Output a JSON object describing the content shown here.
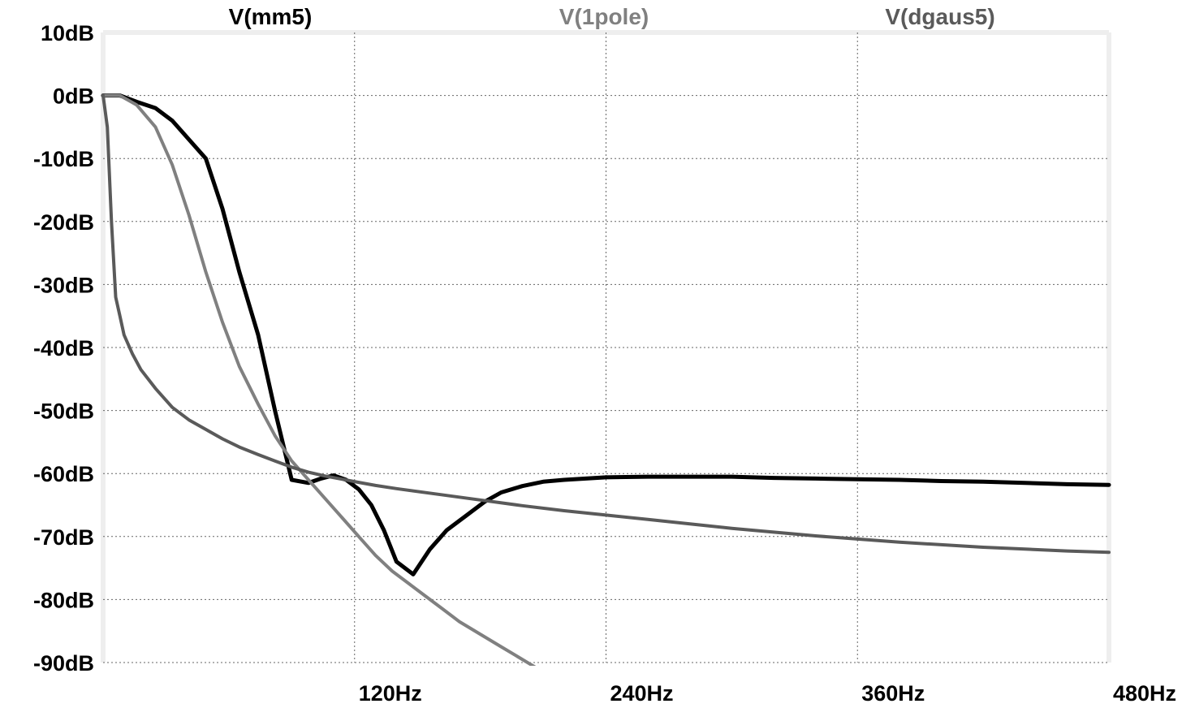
{
  "chart_data": {
    "type": "line",
    "title": "",
    "xlabel": "",
    "ylabel": "",
    "xlim": [
      0,
      480
    ],
    "ylim": [
      -90,
      10
    ],
    "x_ticks": [
      {
        "value": 120,
        "label": "120Hz"
      },
      {
        "value": 240,
        "label": "240Hz"
      },
      {
        "value": 360,
        "label": "360Hz"
      },
      {
        "value": 480,
        "label": "480Hz"
      }
    ],
    "y_ticks": [
      {
        "value": 10,
        "label": "10dB"
      },
      {
        "value": 0,
        "label": "0dB"
      },
      {
        "value": -10,
        "label": "-10dB"
      },
      {
        "value": -20,
        "label": "-20dB"
      },
      {
        "value": -30,
        "label": "-30dB"
      },
      {
        "value": -40,
        "label": "-40dB"
      },
      {
        "value": -50,
        "label": "-50dB"
      },
      {
        "value": -60,
        "label": "-60dB"
      },
      {
        "value": -70,
        "label": "-70dB"
      },
      {
        "value": -80,
        "label": "-80dB"
      },
      {
        "value": -90,
        "label": "-90dB"
      }
    ],
    "grid": true,
    "legend_position": "top",
    "series": [
      {
        "name": "V(mm5)",
        "color": "#000000",
        "x": [
          0,
          8,
          16,
          25,
          33,
          41,
          49,
          57,
          65,
          74,
          82,
          90,
          98,
          104,
          110,
          116,
          122,
          128,
          134,
          140,
          148,
          156,
          164,
          170,
          176,
          182,
          190,
          200,
          210,
          220,
          240,
          260,
          280,
          300,
          320,
          340,
          360,
          380,
          400,
          420,
          440,
          460,
          480
        ],
        "y": [
          0,
          0,
          -1,
          -2,
          -4,
          -7,
          -10,
          -18,
          -28,
          -38,
          -50,
          -61,
          -61.5,
          -60.8,
          -60.3,
          -61,
          -62.5,
          -65,
          -69,
          -74,
          -76,
          -72,
          -69,
          -67.5,
          -66,
          -64.5,
          -63,
          -62,
          -61.3,
          -61,
          -60.6,
          -60.5,
          -60.5,
          -60.5,
          -60.7,
          -60.8,
          -60.9,
          -61,
          -61.2,
          -61.3,
          -61.5,
          -61.7,
          -61.8
        ]
      },
      {
        "name": "V(1pole)",
        "color": "#808080",
        "x": [
          0,
          8,
          16,
          25,
          33,
          41,
          49,
          57,
          65,
          74,
          82,
          90,
          98,
          106,
          114,
          122,
          130,
          138,
          146,
          154,
          162,
          170,
          180,
          190,
          200,
          210,
          220,
          228,
          236
        ],
        "y": [
          0,
          0,
          -1.5,
          -5,
          -11,
          -19,
          -28,
          -36,
          -43,
          -49,
          -54,
          -58,
          -61,
          -64,
          -67,
          -70,
          -73,
          -75.5,
          -77.5,
          -79.5,
          -81.5,
          -83.5,
          -85.5,
          -87.5,
          -89.5,
          -91.5,
          -93,
          -95,
          -96.5
        ]
      },
      {
        "name": "V(dgaus5)",
        "color": "#5a5a5a",
        "x": [
          0,
          2,
          4,
          6,
          8,
          10,
          14,
          18,
          25,
          33,
          41,
          49,
          57,
          65,
          74,
          82,
          90,
          98,
          106,
          114,
          122,
          130,
          140,
          160,
          180,
          200,
          220,
          240,
          260,
          280,
          300,
          320,
          340,
          360,
          380,
          400,
          420,
          440,
          460,
          480
        ],
        "y": [
          0,
          -5,
          -20,
          -32,
          -35,
          -38,
          -41,
          -43.5,
          -46.5,
          -49.5,
          -51.5,
          -53,
          -54.5,
          -55.8,
          -57,
          -58,
          -59,
          -59.8,
          -60.4,
          -60.9,
          -61.4,
          -61.9,
          -62.4,
          -63.3,
          -64.2,
          -65.1,
          -65.9,
          -66.6,
          -67.3,
          -68,
          -68.7,
          -69.3,
          -69.9,
          -70.4,
          -70.9,
          -71.3,
          -71.7,
          -72,
          -72.3,
          -72.5
        ]
      }
    ]
  }
}
